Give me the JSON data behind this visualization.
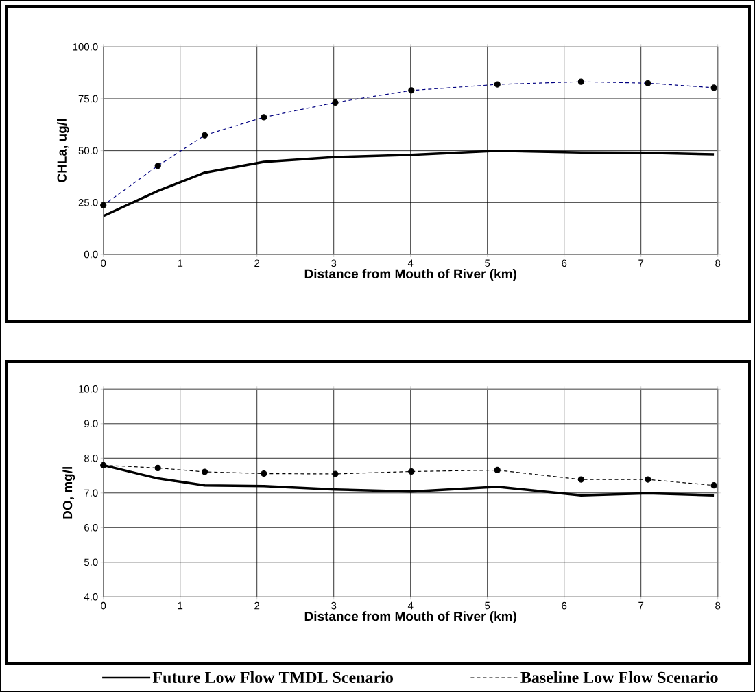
{
  "chart_data": [
    {
      "type": "line",
      "xlabel": "Distance from Mouth of River (km)",
      "ylabel": "CHLa, ug/l",
      "xlim": [
        0,
        8
      ],
      "xticks": [
        0,
        1,
        2,
        3,
        4,
        5,
        6,
        7,
        8
      ],
      "ylim": [
        0,
        100
      ],
      "yticks": [
        {
          "value": 0,
          "label": "0.0"
        },
        {
          "value": 25,
          "label": "25.0"
        },
        {
          "value": 50,
          "label": "50.0"
        },
        {
          "value": 75,
          "label": "75.0"
        },
        {
          "value": 100,
          "label": "100.0"
        }
      ],
      "grid": true,
      "series": [
        {
          "color": "#000000",
          "line_style": "solid",
          "marker": "none",
          "x": [
            0,
            0.71,
            1.32,
            2.09,
            3.02,
            4.01,
            5.13,
            6.22,
            7.09,
            7.95
          ],
          "values": [
            18.5,
            30.6,
            39.4,
            44.6,
            46.9,
            48.0,
            50.0,
            49.1,
            49.0,
            48.2
          ]
        },
        {
          "color": "#000080",
          "line_style": "dashed",
          "marker": "circle",
          "x": [
            0,
            0.71,
            1.32,
            2.09,
            3.02,
            4.01,
            5.13,
            6.22,
            7.09,
            7.95
          ],
          "values": [
            23.7,
            42.7,
            57.4,
            66.1,
            73.2,
            79.0,
            81.9,
            83.2,
            82.5,
            80.3
          ]
        }
      ]
    },
    {
      "type": "line",
      "xlabel": "Distance from Mouth of River (km)",
      "ylabel": "DO, mg/l",
      "xlim": [
        0,
        8
      ],
      "xticks": [
        0,
        1,
        2,
        3,
        4,
        5,
        6,
        7,
        8
      ],
      "ylim": [
        4,
        10
      ],
      "yticks": [
        {
          "value": 4,
          "label": "4.0"
        },
        {
          "value": 5,
          "label": "5.0"
        },
        {
          "value": 6,
          "label": "6.0"
        },
        {
          "value": 7,
          "label": "7.0"
        },
        {
          "value": 8,
          "label": "8.0"
        },
        {
          "value": 9,
          "label": "9.0"
        },
        {
          "value": 10,
          "label": "10.0"
        }
      ],
      "grid": true,
      "legend": "bottom",
      "series": [
        {
          "name": "Future Low Flow TMDL Scenario",
          "color": "#000000",
          "line_style": "solid",
          "marker": "none",
          "x": [
            0,
            0.71,
            1.32,
            2.09,
            3.02,
            4.01,
            5.13,
            6.22,
            7.09,
            7.95
          ],
          "values": [
            7.8,
            7.42,
            7.22,
            7.2,
            7.1,
            7.04,
            7.18,
            6.93,
            6.99,
            6.93
          ]
        },
        {
          "name": "Baseline Low Flow Scenario",
          "color": "#000000",
          "line_style": "dashed",
          "marker": "circle",
          "x": [
            0,
            0.71,
            1.32,
            2.09,
            3.02,
            4.01,
            5.13,
            6.22,
            7.09,
            7.95
          ],
          "values": [
            7.8,
            7.72,
            7.61,
            7.56,
            7.55,
            7.62,
            7.66,
            7.39,
            7.39,
            7.22
          ]
        }
      ]
    }
  ]
}
